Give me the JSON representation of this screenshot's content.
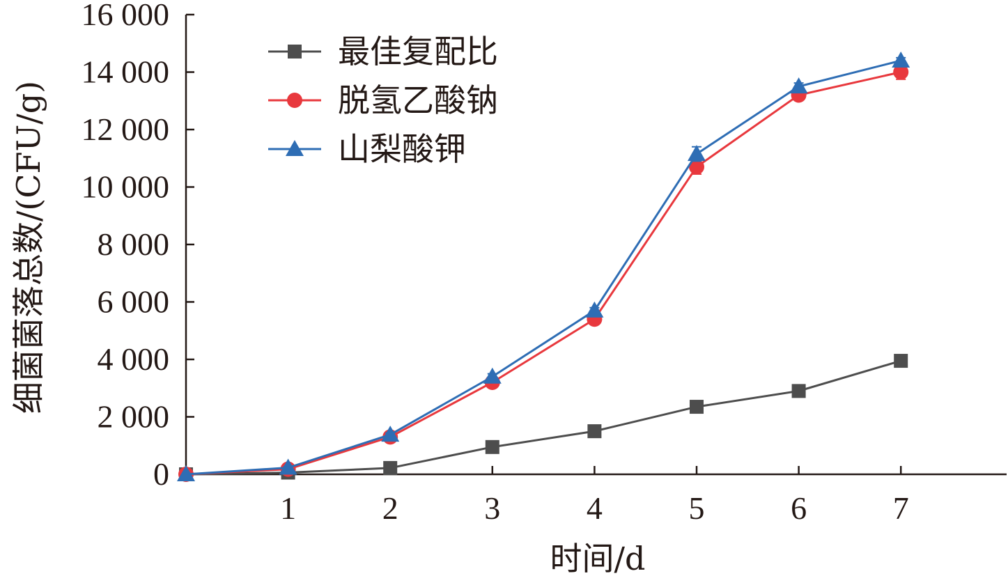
{
  "chart_data": {
    "type": "line",
    "xlabel": "时间/d",
    "ylabel": "细菌菌落总数/(CFU/g)",
    "x": [
      0,
      1,
      2,
      3,
      4,
      5,
      6,
      7
    ],
    "x_tick_labels": [
      "1",
      "2",
      "3",
      "4",
      "5",
      "6",
      "7"
    ],
    "xlim": [
      0,
      8
    ],
    "ylim": [
      0,
      16000
    ],
    "y_tick_labels": [
      "0",
      "2 000",
      "4 000",
      "6 000",
      "8 000",
      "10 000",
      "12 000",
      "14 000",
      "16 000"
    ],
    "grid": false,
    "legend": "top-left",
    "series": [
      {
        "name": "最佳复配比",
        "color": "#4d4d4d",
        "marker": "square",
        "values": [
          0,
          60,
          220,
          950,
          1500,
          2350,
          2900,
          3950
        ],
        "errors": [
          0,
          20,
          30,
          40,
          50,
          60,
          60,
          100
        ]
      },
      {
        "name": "脱氢乙酸钠",
        "color": "#e8383d",
        "marker": "circle",
        "values": [
          0,
          180,
          1300,
          3200,
          5400,
          10700,
          13200,
          14000
        ],
        "errors": [
          0,
          40,
          60,
          100,
          100,
          250,
          120,
          250
        ]
      },
      {
        "name": "山梨酸钾",
        "color": "#2e6db4",
        "marker": "triangle",
        "values": [
          0,
          230,
          1380,
          3400,
          5700,
          11150,
          13500,
          14400
        ],
        "errors": [
          0,
          40,
          60,
          100,
          100,
          250,
          120,
          100
        ]
      }
    ]
  }
}
